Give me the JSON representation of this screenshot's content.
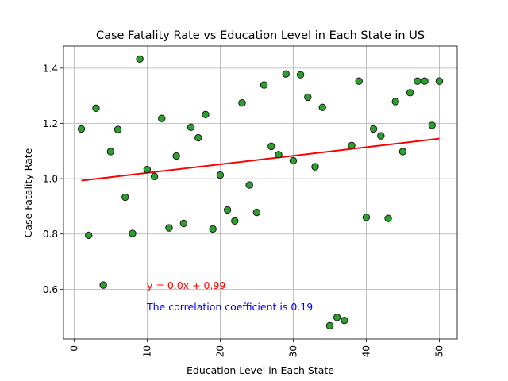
{
  "chart_data": {
    "type": "scatter",
    "title": "Case Fatality Rate vs Education Level in Each State in US",
    "xlabel": "Education Level in Each State",
    "ylabel": "Case Fatality Rate",
    "xlim": [
      -1.45,
      52.45
    ],
    "ylim": [
      0.42,
      1.48
    ],
    "xticks": [
      0,
      10,
      20,
      30,
      40,
      50
    ],
    "yticks": [
      0.6,
      0.8,
      1.0,
      1.2,
      1.4
    ],
    "ytick_labels": [
      "0.6",
      "0.8",
      "1.0",
      "1.2",
      "1.4"
    ],
    "grid": true,
    "point_color": "#2ca02c",
    "point_edge_color": "#1a1a1a",
    "line_color": "#ff0000",
    "annotation_color_equation": "#ff0000",
    "annotation_color_correlation": "#0000ff",
    "x": [
      1,
      2,
      3,
      4,
      5,
      6,
      7,
      8,
      9,
      10,
      11,
      12,
      13,
      14,
      15,
      16,
      17,
      18,
      19,
      20,
      21,
      22,
      23,
      24,
      25,
      26,
      27,
      28,
      29,
      30,
      31,
      32,
      33,
      34,
      35,
      36,
      37,
      38,
      39,
      40,
      41,
      42,
      43,
      44,
      45,
      46,
      47,
      48,
      49,
      50
    ],
    "y": [
      1.18,
      0.795,
      1.255,
      0.615,
      1.098,
      1.178,
      0.933,
      0.802,
      1.433,
      1.033,
      1.008,
      1.218,
      0.822,
      1.082,
      0.838,
      1.186,
      1.148,
      1.232,
      0.818,
      1.013,
      0.887,
      0.847,
      1.274,
      0.977,
      0.878,
      1.339,
      1.117,
      1.087,
      1.379,
      1.065,
      1.376,
      1.295,
      1.043,
      1.258,
      0.468,
      0.498,
      0.487,
      1.12,
      1.353,
      0.86,
      1.18,
      1.155,
      0.856,
      1.279,
      1.098,
      1.311,
      1.353,
      1.353,
      1.193,
      1.353
    ],
    "regression": {
      "slope": 0.0031,
      "intercept": 0.99
    },
    "annotations": {
      "equation": "y = 0.0x + 0.99",
      "correlation": "The correlation coefficient is 0.19"
    }
  }
}
